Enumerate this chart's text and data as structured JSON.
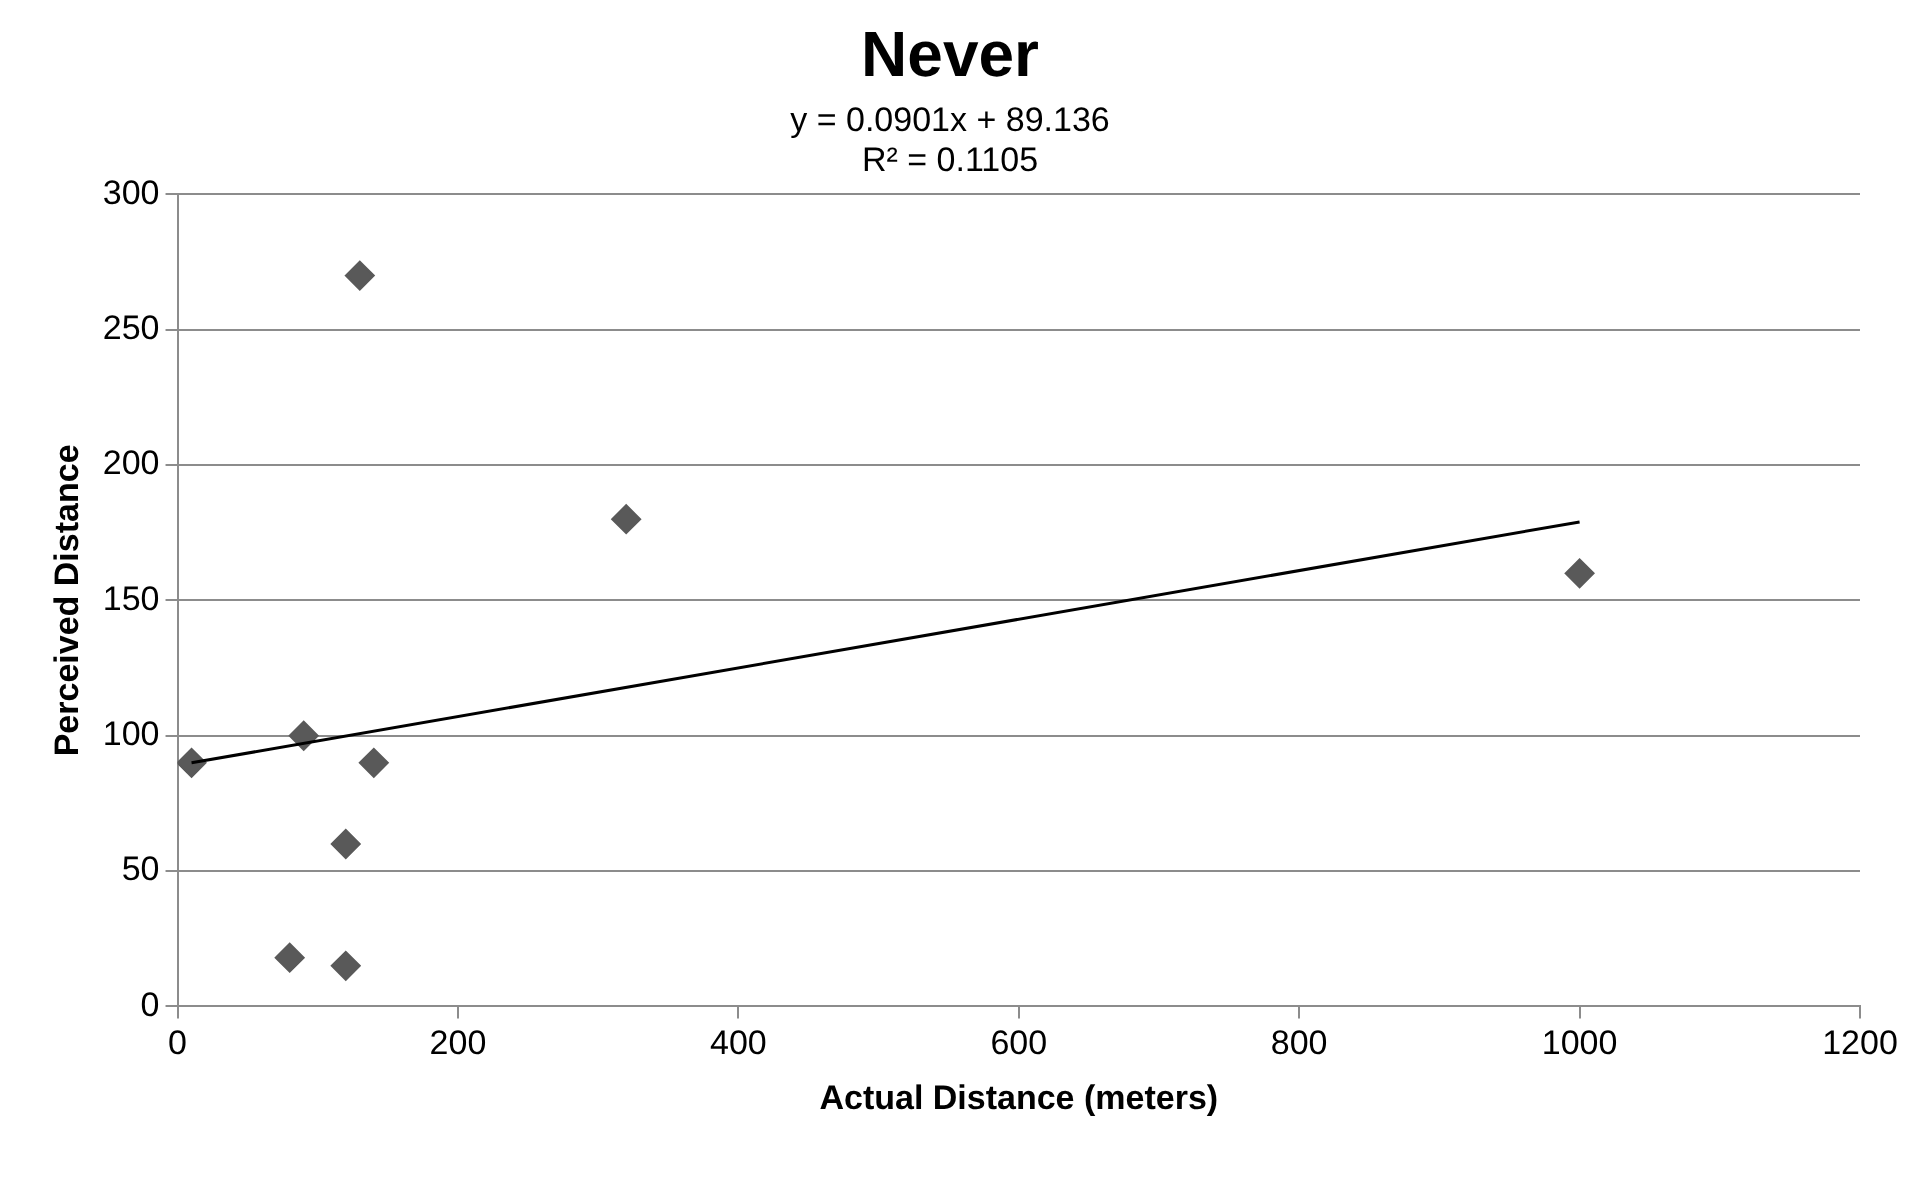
{
  "chart_data": {
    "type": "scatter",
    "title": "Never",
    "annotations": [
      "y = 0.0901x + 89.136",
      "R² = 0.1105"
    ],
    "xlabel": "Actual Distance (meters)",
    "ylabel": "Perceived Distance",
    "series": [
      {
        "color": "#595959",
        "marker": "diamond",
        "x": [
          10,
          90,
          140,
          120,
          80,
          120,
          130,
          320,
          1000
        ],
        "values": [
          90,
          100,
          90,
          60,
          18,
          15,
          270,
          180,
          160
        ]
      },
      {
        "type": "line",
        "color": "#000000",
        "marker": "none",
        "x": [
          10,
          1000
        ],
        "values": [
          90,
          179
        ]
      }
    ],
    "xlim": [
      0,
      1200
    ],
    "xticks": [
      0,
      200,
      400,
      600,
      800,
      1000,
      1200
    ],
    "ylim": [
      0,
      300
    ],
    "yticks": [
      0,
      50,
      100,
      150,
      200,
      250,
      300
    ],
    "grid": "y",
    "legend": false
  }
}
